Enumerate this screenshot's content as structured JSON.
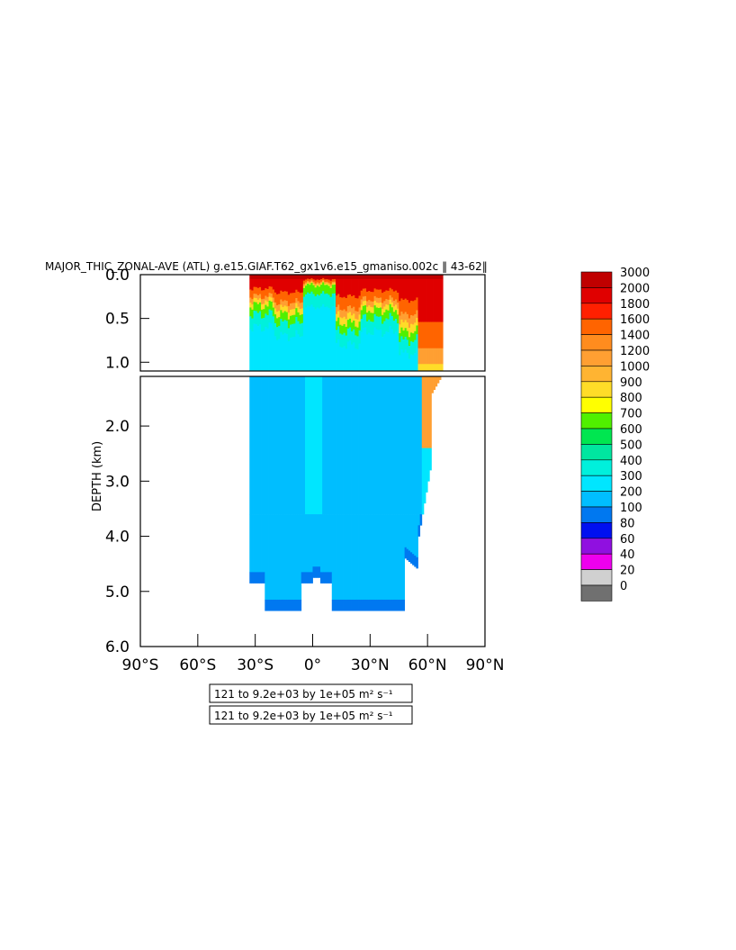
{
  "chart_data": {
    "type": "heatmap",
    "title": "MAJOR_THIC_ZONAL-AVE (ATL) g.e15.GIAF.T62_gx1v6.e15_gmaniso.002c ​‖ 43-62‖",
    "ylabel": "DEPTH (km)",
    "xlabel": "",
    "x_ticks": [
      "90°S",
      "60°S",
      "30°S",
      "0°",
      "30°N",
      "60°N",
      "90°N"
    ],
    "x_range": [
      -90,
      90
    ],
    "upper_panel": {
      "y_ticks": [
        "0.0",
        "0.5",
        "1.0"
      ],
      "y_range": [
        0,
        1.1
      ]
    },
    "lower_panel": {
      "y_ticks": [
        "2.0",
        "3.0",
        "4.0",
        "5.0",
        "6.0"
      ],
      "y_range": [
        1.1,
        6.0
      ]
    },
    "colorbar": {
      "levels": [
        "3000",
        "2000",
        "1800",
        "1600",
        "1400",
        "1200",
        "1000",
        "900",
        "800",
        "700",
        "600",
        "500",
        "400",
        "300",
        "200",
        "100",
        "80",
        "60",
        "40",
        "20",
        "0"
      ],
      "colors": [
        "#c00000",
        "#e00000",
        "#ff2000",
        "#ff6400",
        "#ff8c1e",
        "#ff9f32",
        "#ffb432",
        "#ffdc28",
        "#ffff00",
        "#50f000",
        "#00e650",
        "#00e6a0",
        "#00f0dc",
        "#00e6ff",
        "#00beff",
        "#0078f0",
        "#0010f0",
        "#9010e0",
        "#ee00ee",
        "#d0d0d0",
        "#707070"
      ]
    },
    "contour_info": [
      "121 to 9.2e+03 by 1e+05 m² s⁻¹",
      "121 to 9.2e+03 by 1e+05 m² s⁻¹"
    ]
  }
}
